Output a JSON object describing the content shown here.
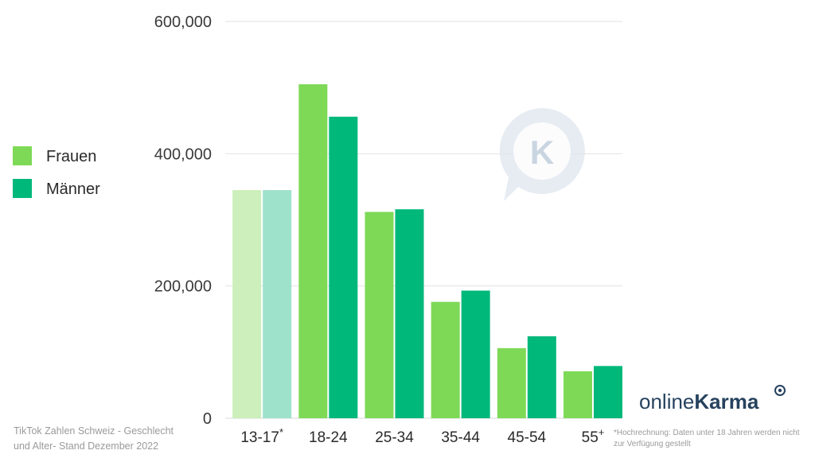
{
  "chart_data": {
    "type": "bar",
    "categories": [
      "13-17*",
      "18-24",
      "25-34",
      "35-44",
      "45-54",
      "55+"
    ],
    "series": [
      {
        "name": "Frauen",
        "values": [
          345000,
          505000,
          312000,
          176000,
          106000,
          71000
        ]
      },
      {
        "name": "Männer",
        "values": [
          345000,
          456000,
          316000,
          193000,
          124000,
          79000
        ]
      }
    ],
    "ylim": [
      0,
      600000
    ],
    "yticks": [
      0,
      200000,
      400000,
      600000
    ],
    "ytick_labels": [
      "0",
      "200,000",
      "400,000",
      "600,000"
    ],
    "grid": true,
    "legend_position": "left",
    "colors": {
      "frauen": "#7ed957",
      "maenner": "#00b87a",
      "frauen_faded": "#ccefbb",
      "maenner_faded": "#9fe2cc"
    },
    "faded_categories": [
      "13-17*"
    ]
  },
  "caption": {
    "line1": "TikTok Zahlen Schweiz - Geschlecht",
    "line2": "und Alter- Stand Dezember 2022"
  },
  "footnote": {
    "line1": "*Hochrechnung: Daten unter 18 Jahren werden nicht",
    "line2": "zur Verfügung gestellt"
  },
  "brand": {
    "part1": "online",
    "part2": "Karma",
    "color": "#26425f"
  },
  "watermark": {
    "letter": "K",
    "color": "#c9d5e1"
  }
}
